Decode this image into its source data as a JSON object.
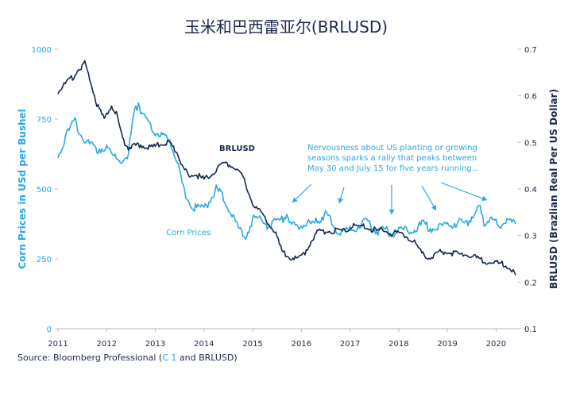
{
  "title": "玉米和巴西雷亚尔(BRLUSD)",
  "source": {
    "prefix": "Source: Bloomberg Professional (",
    "highlight": "C 1",
    "suffix": " and BRLUSD)"
  },
  "colors": {
    "corn": "#29a9e0",
    "brl": "#14284b",
    "text_dark": "#1b2a4a",
    "axis": "#b9b9b9"
  },
  "chart_data": {
    "type": "line",
    "title": "玉米和巴西雷亚尔(BRLUSD)",
    "x_ticks": [
      "2011",
      "2012",
      "2013",
      "2014",
      "2015",
      "2016",
      "2017",
      "2018",
      "2019",
      "2020"
    ],
    "xlim": [
      2011.0,
      2020.45
    ],
    "left_axis": {
      "label": "Corn Prices in USd per Bushel",
      "ticks": [
        "0",
        "250",
        "500",
        "750",
        "1000"
      ],
      "ylim": [
        0,
        1000
      ]
    },
    "right_axis": {
      "label": "BRLUSD (Brazlian Real Per US Dollar)",
      "ticks": [
        "0.1",
        "0.2",
        "0.3",
        "0.4",
        "0.5",
        "0.6",
        "0.7"
      ],
      "ylim": [
        0.1,
        0.7
      ]
    },
    "series": [
      {
        "name": "Corn Prices",
        "axis": "left",
        "x": [
          2011.0,
          2011.2,
          2011.35,
          2011.5,
          2011.65,
          2011.8,
          2011.95,
          2012.1,
          2012.3,
          2012.45,
          2012.55,
          2012.65,
          2012.75,
          2012.9,
          2013.05,
          2013.2,
          2013.35,
          2013.45,
          2013.55,
          2013.7,
          2013.85,
          2014.0,
          2014.15,
          2014.25,
          2014.4,
          2014.55,
          2014.7,
          2014.85,
          2015.0,
          2015.15,
          2015.3,
          2015.45,
          2015.6,
          2015.7,
          2015.8,
          2015.95,
          2016.1,
          2016.25,
          2016.35,
          2016.5,
          2016.6,
          2016.75,
          2016.9,
          2017.05,
          2017.2,
          2017.35,
          2017.45,
          2017.6,
          2017.75,
          2017.9,
          2018.05,
          2018.2,
          2018.35,
          2018.5,
          2018.65,
          2018.8,
          2018.95,
          2019.1,
          2019.25,
          2019.4,
          2019.55,
          2019.65,
          2019.75,
          2019.85,
          2019.95,
          2020.1,
          2020.25,
          2020.4
        ],
        "y": [
          620,
          700,
          740,
          690,
          660,
          640,
          650,
          620,
          600,
          630,
          760,
          810,
          760,
          720,
          700,
          690,
          650,
          600,
          520,
          450,
          430,
          430,
          470,
          500,
          470,
          420,
          360,
          330,
          390,
          395,
          370,
          380,
          390,
          410,
          370,
          370,
          375,
          370,
          390,
          410,
          390,
          340,
          350,
          360,
          370,
          380,
          360,
          350,
          350,
          340,
          350,
          350,
          360,
          375,
          360,
          360,
          370,
          375,
          380,
          370,
          420,
          440,
          380,
          390,
          380,
          375,
          380,
          375
        ]
      },
      {
        "name": "BRLUSD",
        "axis": "right",
        "x": [
          2011.0,
          2011.15,
          2011.3,
          2011.45,
          2011.55,
          2011.7,
          2011.8,
          2011.95,
          2012.1,
          2012.2,
          2012.35,
          2012.45,
          2012.55,
          2012.7,
          2012.85,
          2013.0,
          2013.15,
          2013.25,
          2013.35,
          2013.45,
          2013.55,
          2013.7,
          2013.85,
          2014.0,
          2014.15,
          2014.3,
          2014.45,
          2014.6,
          2014.75,
          2014.85,
          2015.0,
          2015.15,
          2015.3,
          2015.45,
          2015.6,
          2015.75,
          2015.9,
          2016.05,
          2016.2,
          2016.35,
          2016.5,
          2016.65,
          2016.8,
          2016.95,
          2017.1,
          2017.25,
          2017.4,
          2017.55,
          2017.7,
          2017.85,
          2018.0,
          2018.15,
          2018.3,
          2018.45,
          2018.6,
          2018.75,
          2018.9,
          2019.05,
          2019.2,
          2019.35,
          2019.5,
          2019.65,
          2019.8,
          2019.95,
          2020.1,
          2020.25,
          2020.4
        ],
        "y": [
          0.61,
          0.625,
          0.64,
          0.66,
          0.67,
          0.62,
          0.58,
          0.55,
          0.58,
          0.56,
          0.5,
          0.49,
          0.49,
          0.495,
          0.49,
          0.49,
          0.5,
          0.5,
          0.49,
          0.48,
          0.445,
          0.43,
          0.43,
          0.42,
          0.43,
          0.45,
          0.455,
          0.45,
          0.435,
          0.41,
          0.37,
          0.35,
          0.33,
          0.31,
          0.265,
          0.255,
          0.25,
          0.26,
          0.29,
          0.31,
          0.31,
          0.31,
          0.31,
          0.315,
          0.32,
          0.32,
          0.315,
          0.31,
          0.31,
          0.305,
          0.305,
          0.3,
          0.29,
          0.265,
          0.25,
          0.26,
          0.265,
          0.265,
          0.26,
          0.26,
          0.255,
          0.25,
          0.245,
          0.24,
          0.24,
          0.235,
          0.215
        ]
      }
    ],
    "annotations": [
      {
        "text_lines": [
          "Nervousness about US planting or growing",
          "seasons sparks a rally that peaks between",
          "May 30 and July 15 for five years running..."
        ],
        "arrows_to_x": [
          2015.75,
          2016.75,
          2017.75,
          2018.7,
          2019.8
        ]
      }
    ],
    "legend": "inline labels"
  }
}
